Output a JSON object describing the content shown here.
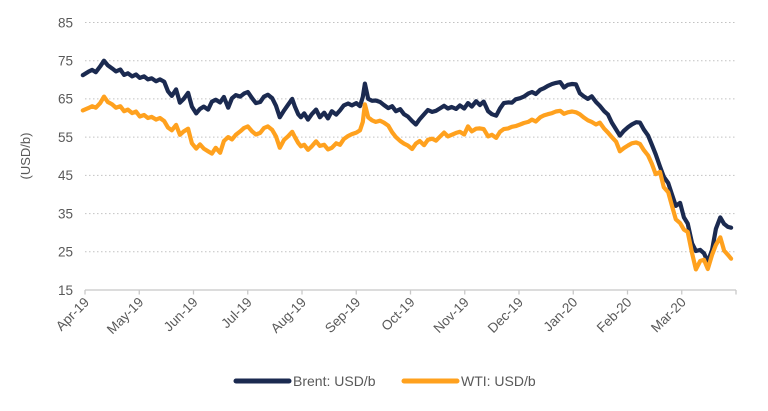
{
  "chart": {
    "y_axis": {
      "title": "(USD/b)",
      "tick_values": [
        15,
        25,
        35,
        45,
        55,
        65,
        75,
        85
      ]
    },
    "x_axis": {
      "ticks": [
        "Apr-19",
        "May-19",
        "Jun-19",
        "Jul-19",
        "Aug-19",
        "Sep-19",
        "Oct-19",
        "Nov-19",
        "Dec-19",
        "Jan-20",
        "Feb-20",
        "Mar-20"
      ]
    },
    "legend": [
      {
        "label": "Brent: USD/b",
        "color": "#1b2a50"
      },
      {
        "label": "WTI: USD/b",
        "color": "#ffa11e"
      }
    ],
    "colors": {
      "brent": "#1b2a50",
      "wti": "#ffa11e",
      "label_gray": "#595959",
      "axis_gray": "#c8c8c8",
      "grid_gray": "#c2c2c2",
      "background": "#ffffff"
    }
  },
  "chart_data": {
    "type": "line",
    "title": "",
    "xlabel": "",
    "ylabel": "(USD/b)",
    "ylim": [
      15,
      85
    ],
    "grid": "horizontal-dotted",
    "legend_position": "bottom-center",
    "x_unit": "months since Apr-2019 tick (0 = Apr-19 tick, 11 = Mar-20 tick, 12 = right edge)",
    "x": [
      -0.04,
      0.06,
      0.13,
      0.2,
      0.28,
      0.35,
      0.42,
      0.5,
      0.57,
      0.65,
      0.72,
      0.79,
      0.87,
      0.94,
      1.01,
      1.09,
      1.16,
      1.23,
      1.31,
      1.38,
      1.46,
      1.53,
      1.6,
      1.68,
      1.75,
      1.82,
      1.9,
      1.97,
      2.05,
      2.12,
      2.19,
      2.27,
      2.34,
      2.41,
      2.49,
      2.56,
      2.64,
      2.71,
      2.78,
      2.86,
      2.93,
      3.0,
      3.08,
      3.15,
      3.23,
      3.3,
      3.37,
      3.45,
      3.52,
      3.59,
      3.67,
      3.74,
      3.82,
      3.87,
      3.93,
      3.98,
      4.04,
      4.11,
      4.18,
      4.26,
      4.33,
      4.41,
      4.48,
      4.55,
      4.63,
      4.7,
      4.77,
      4.85,
      4.92,
      5.0,
      5.07,
      5.12,
      5.16,
      5.22,
      5.29,
      5.36,
      5.44,
      5.51,
      5.59,
      5.66,
      5.73,
      5.81,
      5.88,
      5.95,
      6.03,
      6.1,
      6.17,
      6.25,
      6.32,
      6.4,
      6.47,
      6.54,
      6.62,
      6.69,
      6.76,
      6.84,
      6.91,
      6.99,
      7.06,
      7.13,
      7.21,
      7.28,
      7.35,
      7.43,
      7.5,
      7.58,
      7.65,
      7.72,
      7.8,
      7.87,
      7.94,
      8.02,
      8.09,
      8.17,
      8.24,
      8.31,
      8.39,
      8.46,
      8.53,
      8.61,
      8.68,
      8.76,
      8.83,
      8.9,
      8.98,
      9.05,
      9.12,
      9.2,
      9.27,
      9.34,
      9.42,
      9.49,
      9.57,
      9.64,
      9.71,
      9.79,
      9.86,
      9.93,
      10.01,
      10.08,
      10.16,
      10.23,
      10.3,
      10.38,
      10.45,
      10.52,
      10.6,
      10.67,
      10.75,
      10.82,
      10.89,
      10.97,
      11.04,
      11.11,
      11.19,
      11.26,
      11.34,
      11.41,
      11.48,
      11.56,
      11.63,
      11.71,
      11.78,
      11.85,
      11.91
    ],
    "series": [
      {
        "name": "Brent: USD/b",
        "color": "#1b2a50",
        "values": [
          71.2,
          72.1,
          72.6,
          72.0,
          73.5,
          75.0,
          73.8,
          73.0,
          72.2,
          72.7,
          71.3,
          71.7,
          70.9,
          71.4,
          70.5,
          70.9,
          70.1,
          70.4,
          69.6,
          70.1,
          69.5,
          67.0,
          65.8,
          67.5,
          64.0,
          65.0,
          66.6,
          63.0,
          61.2,
          62.4,
          63.0,
          62.2,
          64.3,
          64.8,
          64.1,
          65.5,
          62.7,
          65.2,
          66.0,
          65.6,
          66.4,
          66.8,
          65.2,
          63.9,
          64.2,
          65.6,
          66.1,
          65.2,
          63.2,
          60.2,
          62.0,
          63.4,
          65.0,
          63.0,
          61.0,
          60.2,
          61.2,
          59.6,
          61.0,
          62.2,
          60.2,
          61.4,
          59.9,
          61.8,
          60.9,
          62.0,
          63.3,
          63.8,
          63.3,
          63.9,
          63.1,
          65.5,
          69.0,
          65.0,
          64.5,
          64.6,
          64.2,
          63.4,
          62.6,
          63.1,
          61.8,
          62.3,
          61.0,
          60.4,
          59.2,
          58.3,
          59.7,
          61.0,
          62.1,
          61.6,
          61.9,
          62.5,
          63.2,
          62.5,
          62.9,
          62.4,
          63.3,
          62.5,
          63.9,
          63.0,
          64.4,
          63.4,
          64.3,
          61.8,
          61.0,
          60.6,
          62.5,
          63.9,
          64.1,
          64.0,
          64.9,
          65.2,
          65.6,
          66.4,
          66.8,
          66.3,
          67.4,
          67.8,
          68.4,
          68.9,
          69.2,
          69.4,
          68.0,
          68.7,
          68.9,
          68.8,
          66.5,
          65.6,
          65.0,
          65.7,
          64.2,
          63.2,
          61.8,
          60.9,
          58.8,
          57.0,
          55.4,
          56.6,
          57.6,
          58.3,
          58.9,
          58.8,
          57.0,
          55.4,
          53.0,
          50.5,
          47.3,
          44.6,
          43.0,
          40.0,
          37.0,
          37.8,
          34.0,
          32.4,
          27.2,
          25.2,
          25.5,
          24.6,
          22.4,
          25.5,
          31.0,
          34.0,
          32.3,
          31.5,
          31.3
        ]
      },
      {
        "name": "WTI: USD/b",
        "color": "#ffa11e",
        "values": [
          62.0,
          62.6,
          63.1,
          62.7,
          63.9,
          65.6,
          64.2,
          63.6,
          62.7,
          63.1,
          61.8,
          62.2,
          61.3,
          61.7,
          60.4,
          60.8,
          60.0,
          60.3,
          59.6,
          60.0,
          59.2,
          57.5,
          56.8,
          58.2,
          55.6,
          56.5,
          57.2,
          53.4,
          52.0,
          53.1,
          52.0,
          51.3,
          50.7,
          52.2,
          50.9,
          54.0,
          55.0,
          54.4,
          55.6,
          56.5,
          57.4,
          57.8,
          56.5,
          55.7,
          56.1,
          57.4,
          57.8,
          56.9,
          55.2,
          52.2,
          54.3,
          55.2,
          56.4,
          55.0,
          53.5,
          52.6,
          53.0,
          51.7,
          52.6,
          53.9,
          52.7,
          53.0,
          51.8,
          52.2,
          53.4,
          53.0,
          54.5,
          55.3,
          55.8,
          56.2,
          56.8,
          59.0,
          63.6,
          60.2,
          59.4,
          59.0,
          59.3,
          58.8,
          58.0,
          56.3,
          55.0,
          54.0,
          53.3,
          52.8,
          51.9,
          53.3,
          54.0,
          52.9,
          54.3,
          54.6,
          54.1,
          55.1,
          56.2,
          55.2,
          55.6,
          56.1,
          56.4,
          55.7,
          57.8,
          56.5,
          57.2,
          57.3,
          57.1,
          55.2,
          55.6,
          54.8,
          56.4,
          57.1,
          57.3,
          57.7,
          57.9,
          58.3,
          58.7,
          59.0,
          59.6,
          59.1,
          60.2,
          60.7,
          61.0,
          61.3,
          61.7,
          61.9,
          61.1,
          61.5,
          61.7,
          61.5,
          61.0,
          60.1,
          59.4,
          59.0,
          58.3,
          58.8,
          57.2,
          56.2,
          55.0,
          53.8,
          51.3,
          52.1,
          52.8,
          53.4,
          53.6,
          53.2,
          51.6,
          50.2,
          48.0,
          45.3,
          45.9,
          41.9,
          40.6,
          37.0,
          33.5,
          32.5,
          30.8,
          30.2,
          24.6,
          20.4,
          22.6,
          22.9,
          20.5,
          24.2,
          26.8,
          28.8,
          25.3,
          24.2,
          23.2
        ]
      }
    ]
  }
}
